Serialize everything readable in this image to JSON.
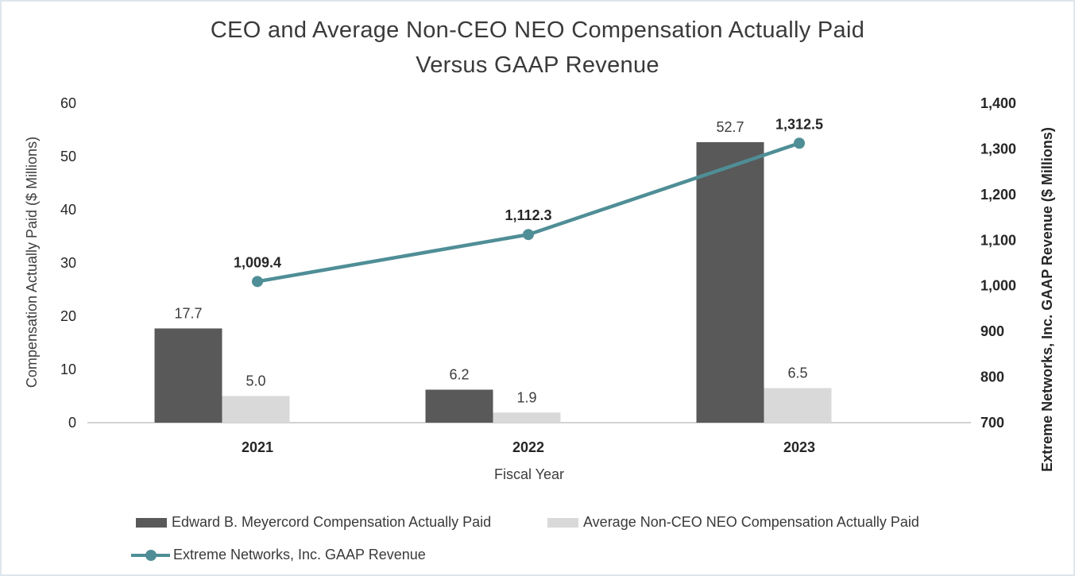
{
  "title": {
    "line1": "CEO and Average Non-CEO NEO Compensation Actually Paid",
    "line2": "Versus GAAP Revenue"
  },
  "chart_data": {
    "type": "combo-bar-line",
    "categories": [
      "2021",
      "2022",
      "2023"
    ],
    "series": [
      {
        "name": "Edward B. Meyercord Compensation Actually Paid",
        "type": "bar",
        "axis": "left",
        "color": "#595959",
        "values": [
          17.7,
          6.2,
          52.7
        ],
        "labels": [
          "17.7",
          "6.2",
          "52.7"
        ]
      },
      {
        "name": "Average Non-CEO NEO Compensation Actually Paid",
        "type": "bar",
        "axis": "left",
        "color": "#d9d9d9",
        "values": [
          5.0,
          1.9,
          6.5
        ],
        "labels": [
          "5.0",
          "1.9",
          "6.5"
        ]
      },
      {
        "name": "Extreme Networks, Inc. GAAP Revenue",
        "type": "line",
        "axis": "right",
        "color": "#4f8e96",
        "values": [
          1009.4,
          1112.3,
          1312.5
        ],
        "labels": [
          "1,009.4",
          "1,112.3",
          "1,312.5"
        ]
      }
    ],
    "xlabel": "Fiscal Year",
    "left_axis": {
      "label": "Compensation Actually Paid ($ Millions)",
      "min": 0,
      "max": 60,
      "step": 10,
      "ticks": [
        "0",
        "10",
        "20",
        "30",
        "40",
        "50",
        "60"
      ]
    },
    "right_axis": {
      "label": "Extreme Networks, Inc. GAAP Revenue ($ Millions)",
      "min": 700,
      "max": 1400,
      "step": 100,
      "ticks": [
        "700",
        "800",
        "900",
        "1,000",
        "1,100",
        "1,200",
        "1,300",
        "1,400"
      ]
    },
    "grid": false,
    "legend_position": "bottom"
  }
}
